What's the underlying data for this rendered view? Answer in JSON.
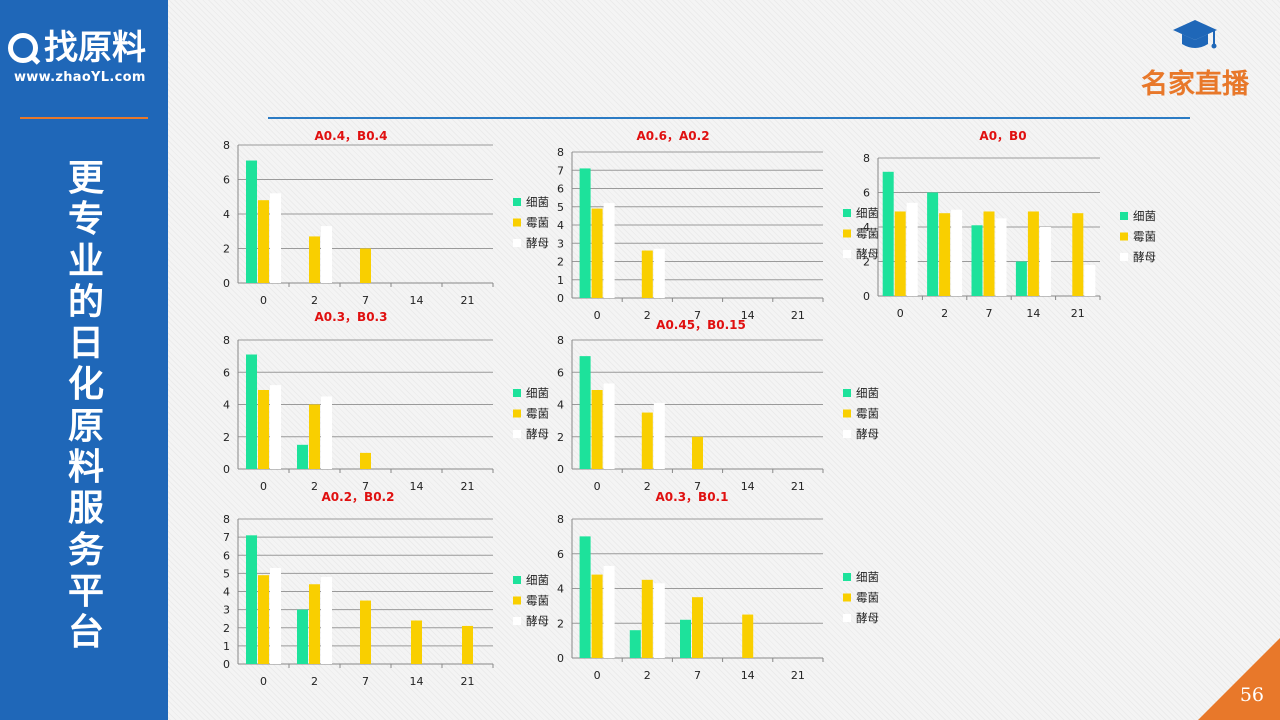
{
  "sidebar": {
    "logo_text": "找原料",
    "logo_url": "www.zhaoYL.com",
    "tagline": "更专业的日化原料服务平台"
  },
  "brand": {
    "title": "名家直播",
    "icon": "graduation-cap-icon"
  },
  "page_number": "56",
  "colors": {
    "sidebar": "#1f67b8",
    "accent": "#e8782a",
    "rule": "#2b7bc4",
    "title": "#e01010",
    "series": [
      "#1de29b",
      "#f9cf00",
      "#ffffff"
    ]
  },
  "chart_data": [
    {
      "type": "bar",
      "title": "A0.4，B0.4",
      "categories": [
        "0",
        "2",
        "7",
        "14",
        "21"
      ],
      "ylim": [
        0,
        8
      ],
      "yticks": [
        0,
        2,
        4,
        6,
        8
      ],
      "grid": true,
      "legend_position": "right",
      "series": [
        {
          "name": "细菌",
          "values": [
            7.1,
            0,
            0,
            0,
            0
          ]
        },
        {
          "name": "霉菌",
          "values": [
            4.8,
            2.7,
            2,
            0,
            0
          ]
        },
        {
          "name": "酵母",
          "values": [
            5.2,
            3.3,
            0,
            0,
            0
          ]
        }
      ]
    },
    {
      "type": "bar",
      "title": "A0.6，A0.2",
      "categories": [
        "0",
        "2",
        "7",
        "14",
        "21"
      ],
      "ylim": [
        0,
        8
      ],
      "yticks": [
        0,
        1,
        2,
        3,
        4,
        5,
        6,
        7,
        8
      ],
      "grid": true,
      "legend_position": "right",
      "series": [
        {
          "name": "细菌",
          "values": [
            7.1,
            0,
            0,
            0,
            0
          ]
        },
        {
          "name": "霉菌",
          "values": [
            4.9,
            2.6,
            0,
            0,
            0
          ]
        },
        {
          "name": "酵母",
          "values": [
            5.2,
            2.7,
            0,
            0,
            0
          ]
        }
      ]
    },
    {
      "type": "bar",
      "title": "A0，B0",
      "categories": [
        "0",
        "2",
        "7",
        "14",
        "21"
      ],
      "ylim": [
        0,
        8
      ],
      "yticks": [
        0,
        2,
        4,
        6,
        8
      ],
      "grid": true,
      "legend_position": "right",
      "series": [
        {
          "name": "细菌",
          "values": [
            7.2,
            6,
            4.1,
            2,
            0
          ]
        },
        {
          "name": "霉菌",
          "values": [
            4.9,
            4.8,
            4.9,
            4.9,
            4.8
          ]
        },
        {
          "name": "酵母",
          "values": [
            5.4,
            5,
            4.5,
            4,
            1.8
          ]
        }
      ]
    },
    {
      "type": "bar",
      "title": "A0.3，B0.3",
      "categories": [
        "0",
        "2",
        "7",
        "14",
        "21"
      ],
      "ylim": [
        0,
        8
      ],
      "yticks": [
        0,
        2,
        4,
        6,
        8
      ],
      "grid": true,
      "legend_position": "right",
      "series": [
        {
          "name": "细菌",
          "values": [
            7.1,
            1.5,
            0,
            0,
            0
          ]
        },
        {
          "name": "霉菌",
          "values": [
            4.9,
            4,
            1,
            0,
            0
          ]
        },
        {
          "name": "酵母",
          "values": [
            5.2,
            4.5,
            0,
            0,
            0
          ]
        }
      ]
    },
    {
      "type": "bar",
      "title": "A0.45，B0.15",
      "categories": [
        "0",
        "2",
        "7",
        "14",
        "21"
      ],
      "ylim": [
        0,
        8
      ],
      "yticks": [
        0,
        2,
        4,
        6,
        8
      ],
      "grid": true,
      "legend_position": "right",
      "series": [
        {
          "name": "细菌",
          "values": [
            7,
            0,
            0,
            0,
            0
          ]
        },
        {
          "name": "霉菌",
          "values": [
            4.9,
            3.5,
            2,
            0,
            0
          ]
        },
        {
          "name": "酵母",
          "values": [
            5.3,
            4.1,
            0,
            0,
            0
          ]
        }
      ]
    },
    {
      "type": "bar",
      "title": "A0.2，B0.2",
      "categories": [
        "0",
        "2",
        "7",
        "14",
        "21"
      ],
      "ylim": [
        0,
        8
      ],
      "yticks": [
        0,
        1,
        2,
        3,
        4,
        5,
        6,
        7,
        8
      ],
      "grid": true,
      "legend_position": "right",
      "series": [
        {
          "name": "细菌",
          "values": [
            7.1,
            3,
            0,
            0,
            0
          ]
        },
        {
          "name": "霉菌",
          "values": [
            4.9,
            4.4,
            3.5,
            2.4,
            2.1
          ]
        },
        {
          "name": "酵母",
          "values": [
            5.3,
            4.8,
            0,
            0,
            0
          ]
        }
      ]
    },
    {
      "type": "bar",
      "title": "A0.3，B0.1",
      "categories": [
        "0",
        "2",
        "7",
        "14",
        "21"
      ],
      "ylim": [
        0,
        8
      ],
      "yticks": [
        0,
        2,
        4,
        6,
        8
      ],
      "grid": true,
      "legend_position": "right",
      "series": [
        {
          "name": "细菌",
          "values": [
            7,
            1.6,
            2.2,
            0,
            0
          ]
        },
        {
          "name": "霉菌",
          "values": [
            4.8,
            4.5,
            3.5,
            2.5,
            0
          ]
        },
        {
          "name": "酵母",
          "values": [
            5.3,
            4.3,
            0,
            0,
            0
          ]
        }
      ]
    }
  ]
}
